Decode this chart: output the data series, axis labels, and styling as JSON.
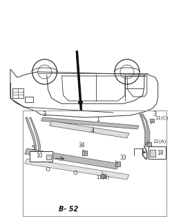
{
  "bg_color": "#f5f5f5",
  "lc": "#333333",
  "lc_dark": "#111111",
  "gray_fill": "#b0b0b0",
  "light_gray": "#d8d8d8",
  "white": "#ffffff",
  "label_b52": "B-52",
  "parts": {
    "3_left": "3",
    "3_right": "3",
    "1": "1",
    "4": "4",
    "5": "5",
    "10": "10",
    "34": "34",
    "33": "33",
    "11C": "11(C)",
    "11A": "11(A)",
    "11B": "11(B)",
    "18": "18"
  }
}
